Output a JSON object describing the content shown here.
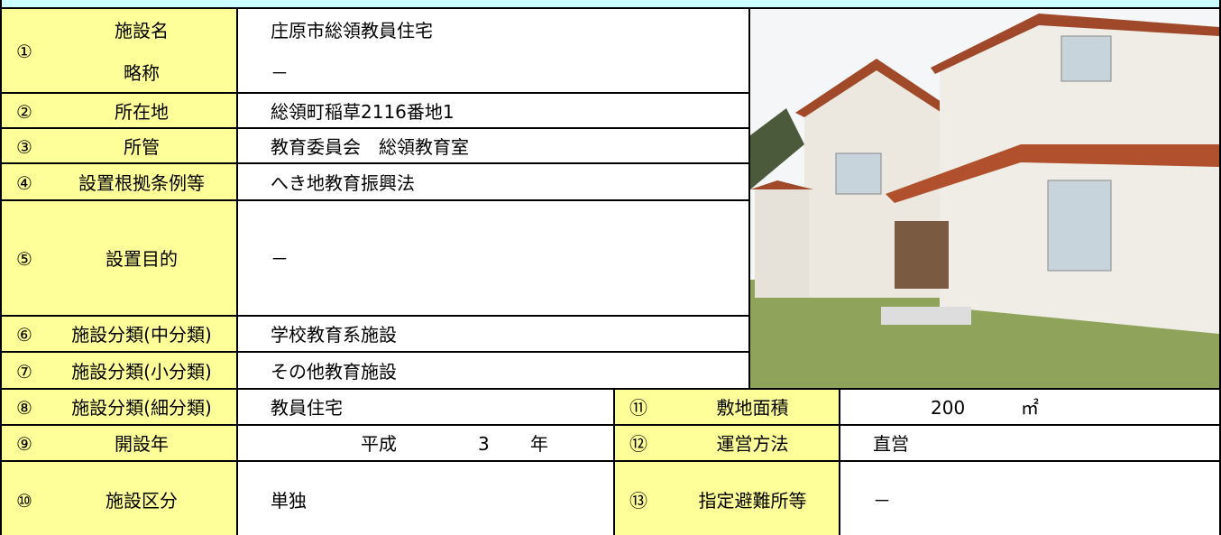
{
  "rows": [
    {
      "number": "①",
      "labels": [
        "施設名",
        "略称"
      ],
      "values": [
        "庄原市総領教員住宅",
        "－"
      ]
    },
    {
      "number": "②",
      "label": "所在地",
      "value": "総領町稲草2116番地1"
    },
    {
      "number": "③",
      "label": "所管",
      "value": "教育委員会　総領教育室"
    },
    {
      "number": "④",
      "label": "設置根拠条例等",
      "value": "へき地教育振興法"
    },
    {
      "number": "⑤",
      "label": "設置目的",
      "value": "－"
    },
    {
      "number": "⑥",
      "label": "施設分類(中分類)",
      "value": "学校教育系施設"
    },
    {
      "number": "⑦",
      "label": "施設分類(小分類)",
      "value": "その他教育施設"
    },
    {
      "number": "⑧",
      "label": "施設分類(細分類)",
      "value": "教員住宅"
    },
    {
      "number": "⑨",
      "label": "開設年",
      "value": {
        "era": "平成",
        "year": 3,
        "unit": "年"
      }
    },
    {
      "number": "⑩",
      "label": "施設区分",
      "value": "単独"
    }
  ],
  "side_rows": [
    {
      "number": "⑪",
      "label": "敷地面積",
      "value": 200,
      "unit": "㎡"
    },
    {
      "number": "⑫",
      "label": "運営方法",
      "value": "直営"
    },
    {
      "number": "⑬",
      "label": "指定避難所等",
      "value": "－"
    }
  ]
}
